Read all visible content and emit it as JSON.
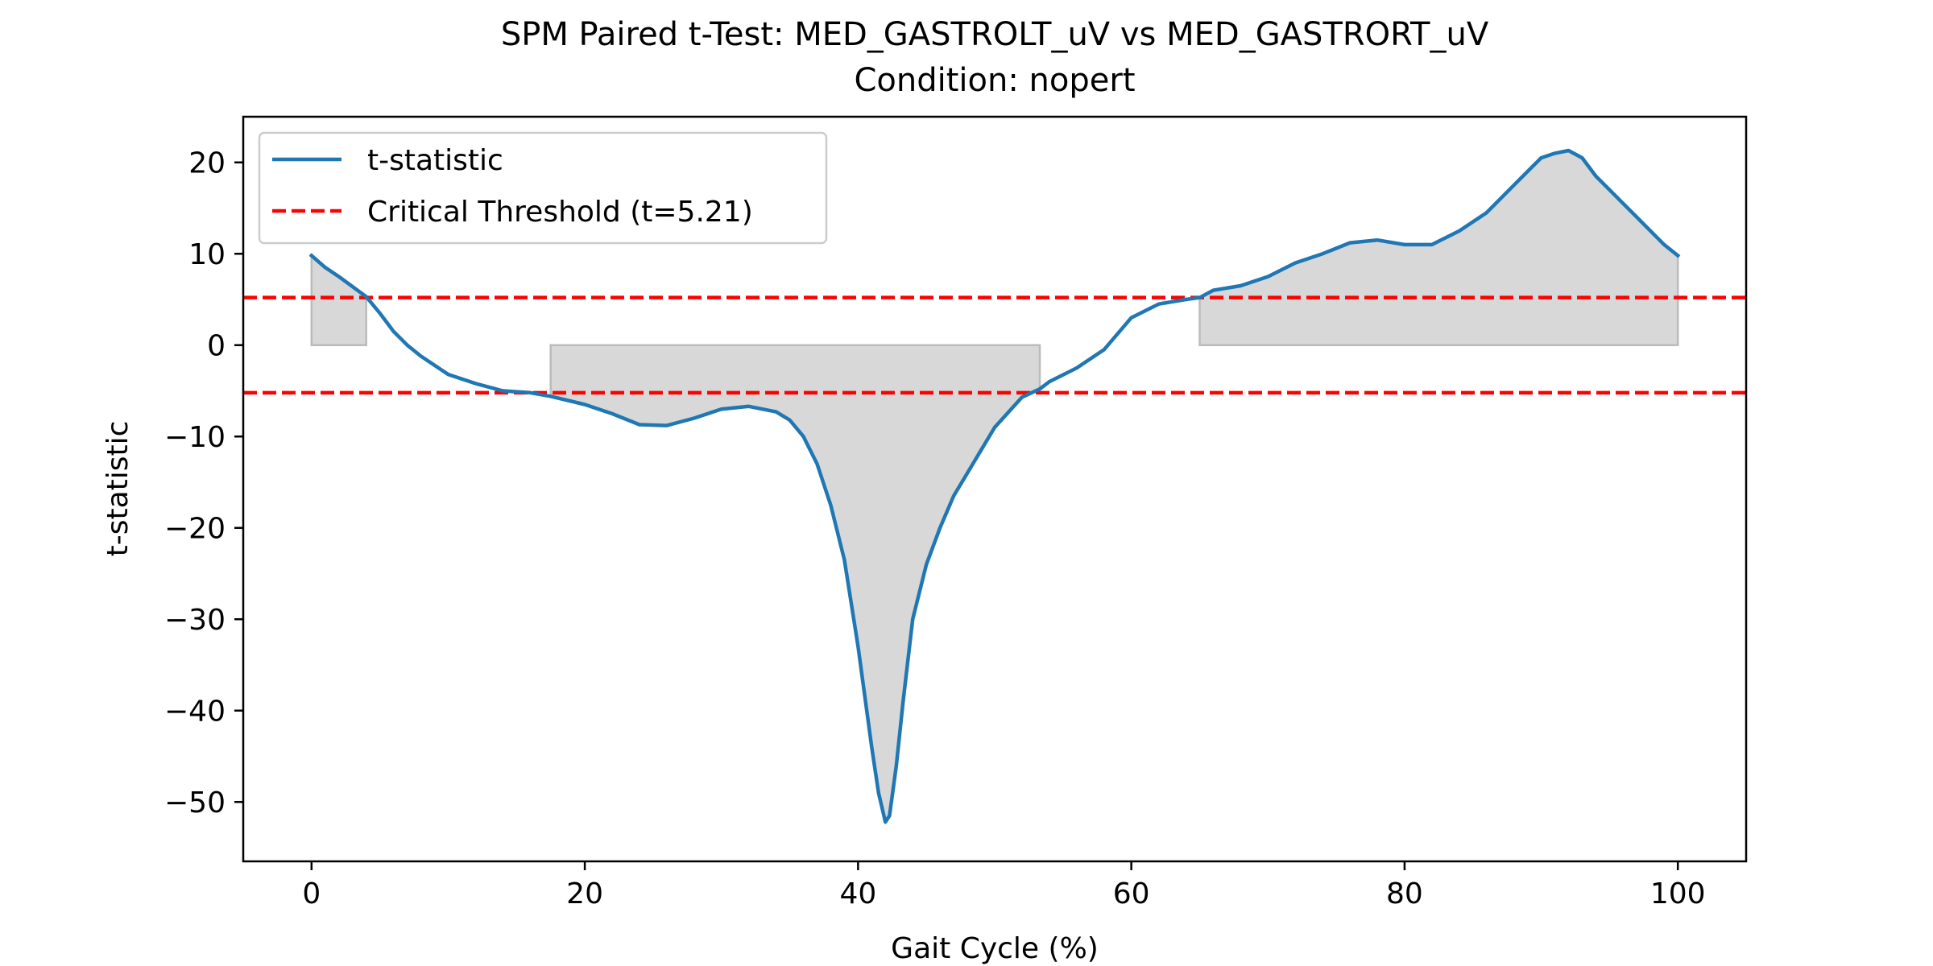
{
  "chart_data": {
    "type": "line",
    "title": "SPM Paired t-Test: MED_GASTROLT_uV vs MED_GASTRORT_uV",
    "subtitle": "Condition: nopert",
    "xlabel": "Gait Cycle (%)",
    "ylabel": "t-statistic",
    "xlim": [
      -5,
      105
    ],
    "ylim": [
      -56.5,
      25
    ],
    "xticks": [
      0,
      20,
      40,
      60,
      80,
      100
    ],
    "yticks": [
      20,
      10,
      0,
      -10,
      -20,
      -30,
      -40,
      -50
    ],
    "xtick_labels": [
      "0",
      "20",
      "40",
      "60",
      "80",
      "100"
    ],
    "ytick_labels": [
      "20",
      "10",
      "0",
      "−10",
      "−20",
      "−30",
      "−40",
      "−50"
    ],
    "grid": false,
    "legend_position": "top-left",
    "series": [
      {
        "name": "t-statistic",
        "color": "#1f77b4",
        "style": "solid",
        "x": [
          0,
          1,
          2,
          3,
          4,
          5,
          6,
          7,
          8,
          10,
          12,
          14,
          16,
          17.5,
          20,
          22,
          24,
          26,
          28,
          30,
          32,
          34,
          35,
          36,
          37,
          38,
          39,
          40,
          41,
          41.5,
          42,
          42.3,
          42.8,
          43.3,
          44,
          45,
          46,
          47,
          48,
          50,
          52,
          53.3,
          54,
          56,
          58,
          60,
          62,
          64,
          65,
          66,
          68,
          70,
          72,
          74,
          76,
          78,
          80,
          82,
          84,
          86,
          88,
          90,
          91,
          92,
          93,
          94,
          95,
          96,
          97,
          98,
          99,
          100
        ],
        "y": [
          9.8,
          8.5,
          7.5,
          6.4,
          5.3,
          3.5,
          1.5,
          0,
          -1.2,
          -3.2,
          -4.2,
          -5.0,
          -5.2,
          -5.6,
          -6.5,
          -7.5,
          -8.7,
          -8.8,
          -8.0,
          -7.0,
          -6.7,
          -7.3,
          -8.2,
          -10.0,
          -13.0,
          -17.5,
          -23.5,
          -33.0,
          -44.0,
          -49.0,
          -52.2,
          -51.5,
          -46.0,
          -39.0,
          -30.0,
          -24.0,
          -20.0,
          -16.5,
          -14.0,
          -9.0,
          -5.7,
          -4.8,
          -4.0,
          -2.5,
          -0.5,
          3.0,
          4.5,
          5.0,
          5.2,
          6.0,
          6.5,
          7.5,
          9.0,
          10.0,
          11.2,
          11.5,
          11.0,
          11.0,
          12.5,
          14.5,
          17.5,
          20.5,
          21.0,
          21.3,
          20.5,
          18.5,
          17.0,
          15.5,
          14.0,
          12.5,
          11.0,
          9.8
        ]
      },
      {
        "name": "Critical Threshold (t=5.21)",
        "color": "#ff0000",
        "style": "dashed",
        "y_const": [
          5.21,
          -5.21
        ]
      }
    ],
    "shaded_regions": [
      {
        "x_start": 0,
        "x_end": 4,
        "sign": "positive"
      },
      {
        "x_start": 17.5,
        "x_end": 53.3,
        "sign": "negative"
      },
      {
        "x_start": 65,
        "x_end": 100,
        "sign": "positive"
      }
    ],
    "shade_color": "#d8d8d8"
  }
}
